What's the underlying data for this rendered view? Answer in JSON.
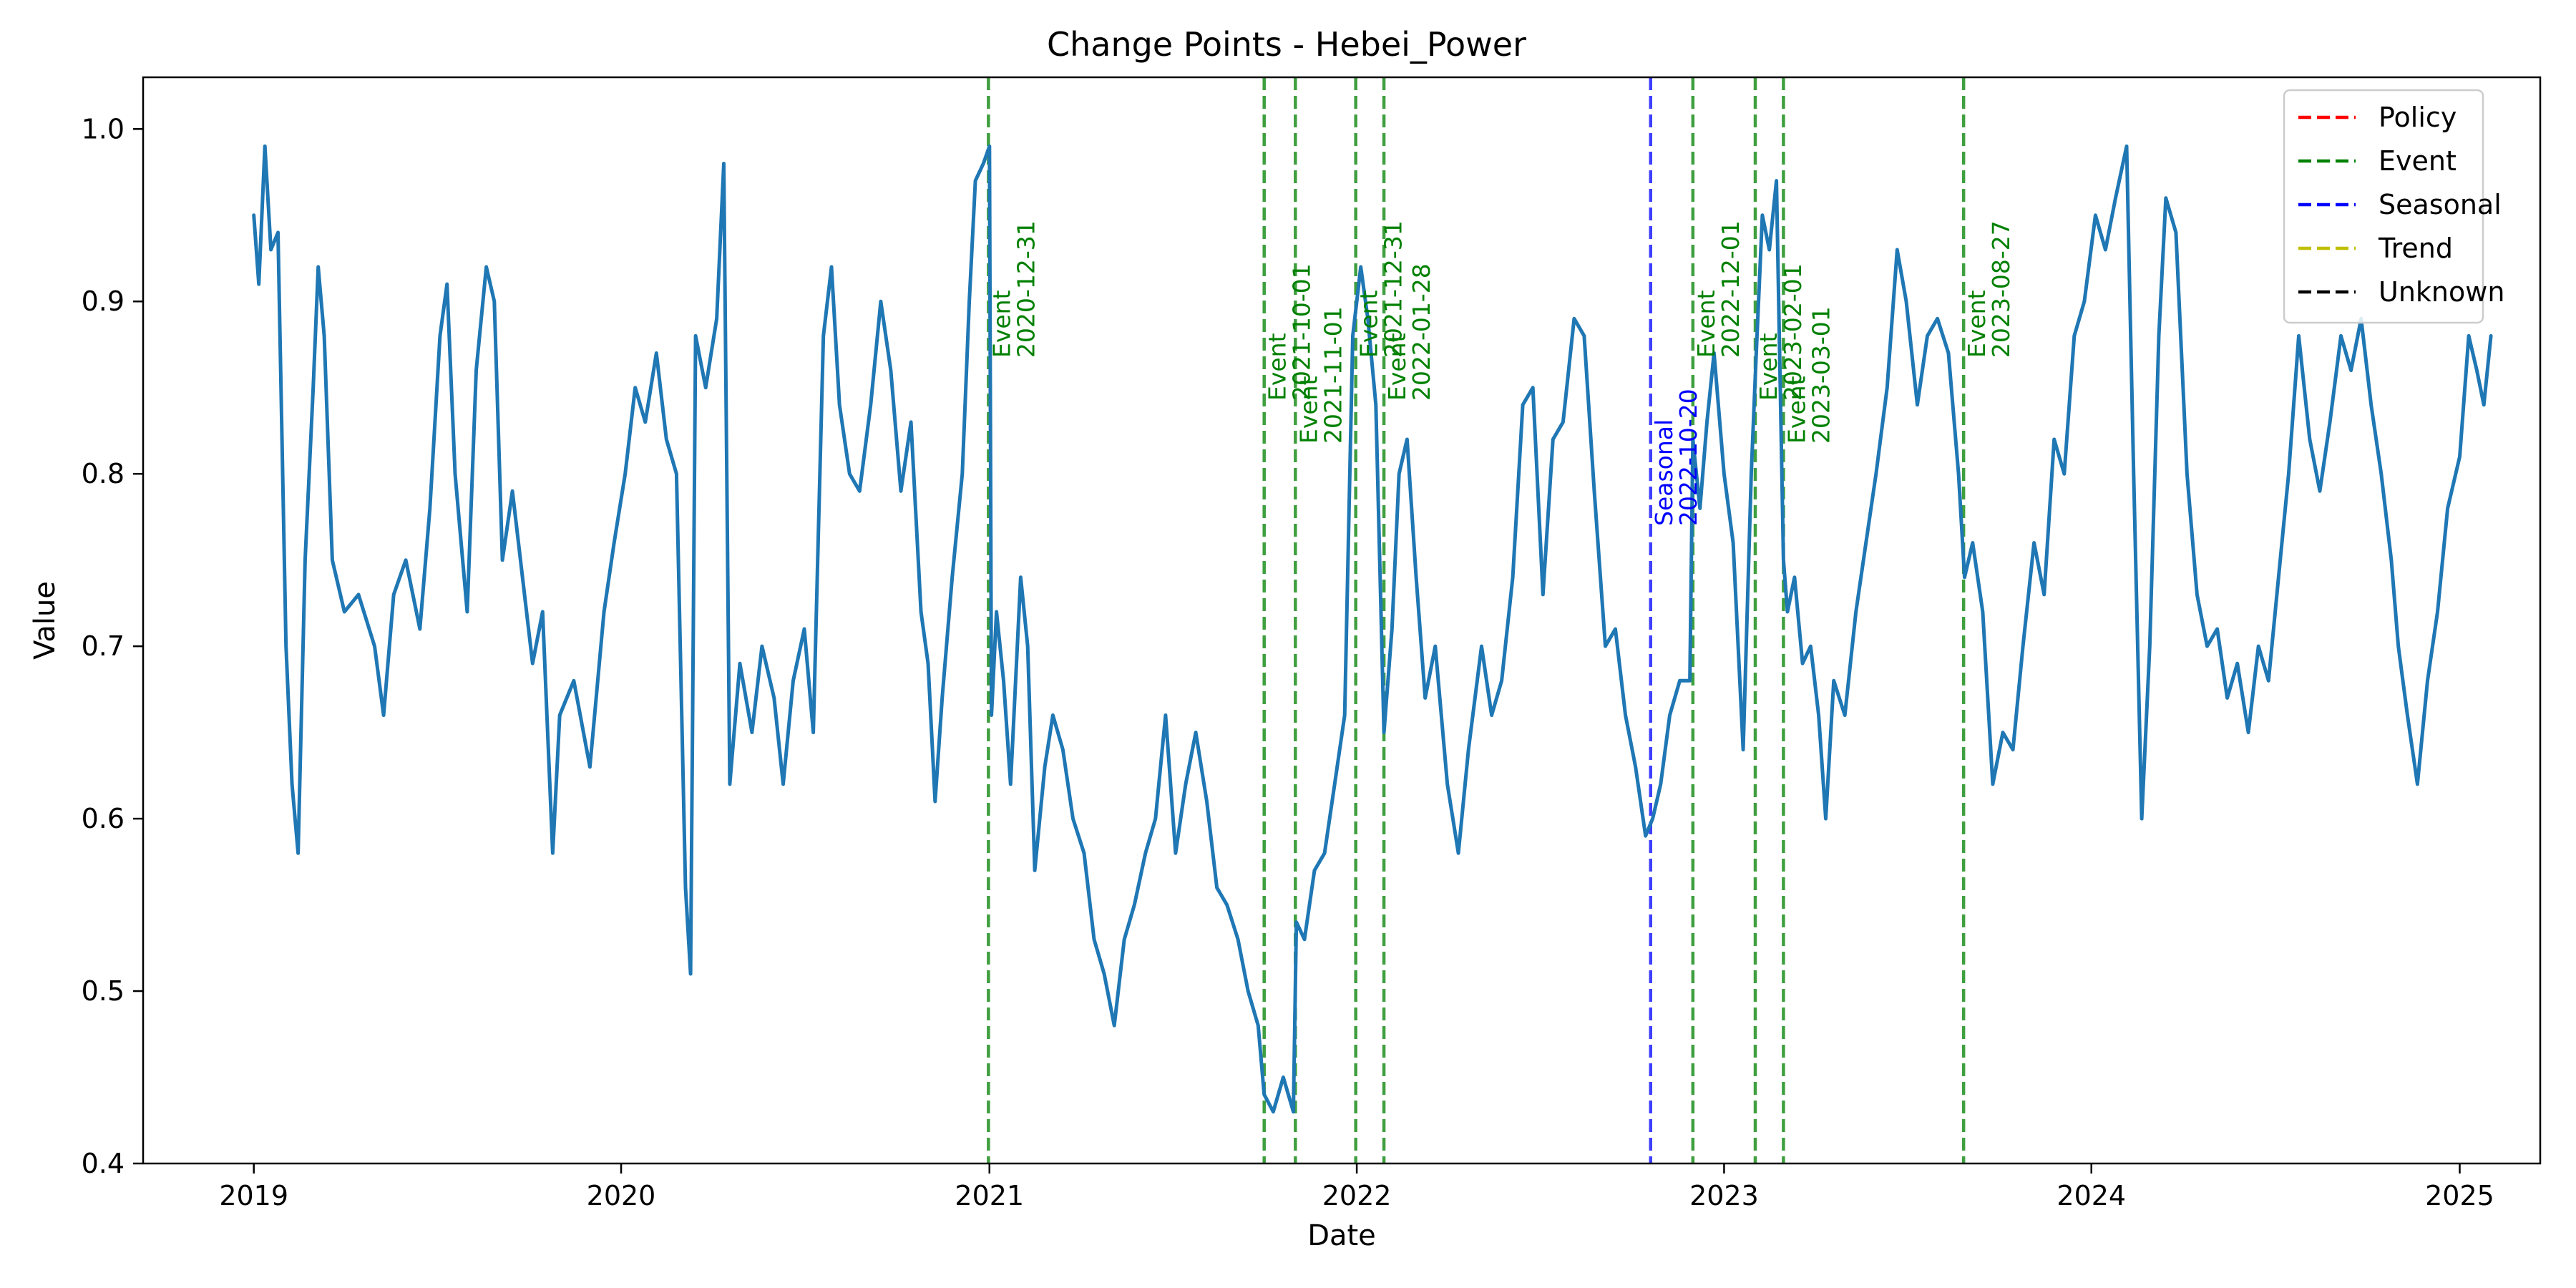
{
  "chart_data": {
    "type": "line",
    "title": "Change Points - Hebei_Power",
    "xlabel": "Date",
    "ylabel": "Value",
    "xlim": [
      "2018-09-13",
      "2025-03-22"
    ],
    "ylim": [
      0.4,
      1.03
    ],
    "xticks": [
      "2019",
      "2020",
      "2021",
      "2022",
      "2023",
      "2024",
      "2025"
    ],
    "yticks": [
      "0.4",
      "0.5",
      "0.6",
      "0.7",
      "0.8",
      "0.9",
      "1.0"
    ],
    "grid": false,
    "legend_position": "top-right",
    "legend": [
      {
        "label": "Policy",
        "color": "#ff0000"
      },
      {
        "label": "Event",
        "color": "#008000"
      },
      {
        "label": "Seasonal",
        "color": "#0000ff"
      },
      {
        "label": "Trend",
        "color": "#bfbf00"
      },
      {
        "label": "Unknown",
        "color": "#000000"
      }
    ],
    "series": [
      {
        "color": "#1f77b4",
        "points": [
          [
            "2019-01-01",
            0.95
          ],
          [
            "2019-01-06",
            0.91
          ],
          [
            "2019-01-12",
            0.99
          ],
          [
            "2019-01-18",
            0.93
          ],
          [
            "2019-01-25",
            0.94
          ],
          [
            "2019-02-02",
            0.7
          ],
          [
            "2019-02-08",
            0.62
          ],
          [
            "2019-02-14",
            0.58
          ],
          [
            "2019-02-21",
            0.75
          ],
          [
            "2019-03-01",
            0.85
          ],
          [
            "2019-03-06",
            0.92
          ],
          [
            "2019-03-12",
            0.88
          ],
          [
            "2019-03-20",
            0.75
          ],
          [
            "2019-04-01",
            0.72
          ],
          [
            "2019-04-15",
            0.73
          ],
          [
            "2019-05-01",
            0.7
          ],
          [
            "2019-05-10",
            0.66
          ],
          [
            "2019-05-20",
            0.73
          ],
          [
            "2019-06-01",
            0.75
          ],
          [
            "2019-06-15",
            0.71
          ],
          [
            "2019-06-25",
            0.78
          ],
          [
            "2019-07-05",
            0.88
          ],
          [
            "2019-07-12",
            0.91
          ],
          [
            "2019-07-20",
            0.8
          ],
          [
            "2019-08-01",
            0.72
          ],
          [
            "2019-08-10",
            0.86
          ],
          [
            "2019-08-20",
            0.92
          ],
          [
            "2019-08-28",
            0.9
          ],
          [
            "2019-09-05",
            0.75
          ],
          [
            "2019-09-15",
            0.79
          ],
          [
            "2019-09-25",
            0.74
          ],
          [
            "2019-10-05",
            0.69
          ],
          [
            "2019-10-15",
            0.72
          ],
          [
            "2019-10-25",
            0.58
          ],
          [
            "2019-11-01",
            0.66
          ],
          [
            "2019-11-15",
            0.68
          ],
          [
            "2019-12-01",
            0.63
          ],
          [
            "2019-12-15",
            0.72
          ],
          [
            "2019-12-25",
            0.76
          ],
          [
            "2020-01-05",
            0.8
          ],
          [
            "2020-01-15",
            0.85
          ],
          [
            "2020-01-25",
            0.83
          ],
          [
            "2020-02-05",
            0.87
          ],
          [
            "2020-02-15",
            0.82
          ],
          [
            "2020-02-25",
            0.8
          ],
          [
            "2020-03-05",
            0.56
          ],
          [
            "2020-03-10",
            0.51
          ],
          [
            "2020-03-15",
            0.88
          ],
          [
            "2020-03-25",
            0.85
          ],
          [
            "2020-04-05",
            0.89
          ],
          [
            "2020-04-12",
            0.98
          ],
          [
            "2020-04-18",
            0.62
          ],
          [
            "2020-04-28",
            0.69
          ],
          [
            "2020-05-10",
            0.65
          ],
          [
            "2020-05-20",
            0.7
          ],
          [
            "2020-06-01",
            0.67
          ],
          [
            "2020-06-10",
            0.62
          ],
          [
            "2020-06-20",
            0.68
          ],
          [
            "2020-07-01",
            0.71
          ],
          [
            "2020-07-10",
            0.65
          ],
          [
            "2020-07-20",
            0.88
          ],
          [
            "2020-07-28",
            0.92
          ],
          [
            "2020-08-05",
            0.84
          ],
          [
            "2020-08-15",
            0.8
          ],
          [
            "2020-08-25",
            0.79
          ],
          [
            "2020-09-05",
            0.84
          ],
          [
            "2020-09-15",
            0.9
          ],
          [
            "2020-09-25",
            0.86
          ],
          [
            "2020-10-05",
            0.79
          ],
          [
            "2020-10-15",
            0.83
          ],
          [
            "2020-10-25",
            0.72
          ],
          [
            "2020-11-01",
            0.69
          ],
          [
            "2020-11-08",
            0.61
          ],
          [
            "2020-11-15",
            0.67
          ],
          [
            "2020-11-25",
            0.74
          ],
          [
            "2020-12-05",
            0.8
          ],
          [
            "2020-12-12",
            0.9
          ],
          [
            "2020-12-18",
            0.97
          ],
          [
            "2020-12-26",
            0.98
          ],
          [
            "2021-01-01",
            0.99
          ],
          [
            "2021-01-03",
            0.66
          ],
          [
            "2021-01-08",
            0.72
          ],
          [
            "2021-01-15",
            0.68
          ],
          [
            "2021-01-22",
            0.62
          ],
          [
            "2021-02-01",
            0.74
          ],
          [
            "2021-02-08",
            0.7
          ],
          [
            "2021-02-15",
            0.57
          ],
          [
            "2021-02-25",
            0.63
          ],
          [
            "2021-03-05",
            0.66
          ],
          [
            "2021-03-15",
            0.64
          ],
          [
            "2021-03-25",
            0.6
          ],
          [
            "2021-04-05",
            0.58
          ],
          [
            "2021-04-15",
            0.53
          ],
          [
            "2021-04-25",
            0.51
          ],
          [
            "2021-05-05",
            0.48
          ],
          [
            "2021-05-15",
            0.53
          ],
          [
            "2021-05-25",
            0.55
          ],
          [
            "2021-06-05",
            0.58
          ],
          [
            "2021-06-15",
            0.6
          ],
          [
            "2021-06-25",
            0.66
          ],
          [
            "2021-07-05",
            0.58
          ],
          [
            "2021-07-15",
            0.62
          ],
          [
            "2021-07-25",
            0.65
          ],
          [
            "2021-08-05",
            0.61
          ],
          [
            "2021-08-15",
            0.56
          ],
          [
            "2021-08-25",
            0.55
          ],
          [
            "2021-09-05",
            0.53
          ],
          [
            "2021-09-15",
            0.5
          ],
          [
            "2021-09-25",
            0.48
          ],
          [
            "2021-10-01",
            0.44
          ],
          [
            "2021-10-10",
            0.43
          ],
          [
            "2021-10-20",
            0.45
          ],
          [
            "2021-10-30",
            0.43
          ],
          [
            "2021-11-02",
            0.54
          ],
          [
            "2021-11-10",
            0.53
          ],
          [
            "2021-11-20",
            0.57
          ],
          [
            "2021-11-30",
            0.58
          ],
          [
            "2021-12-10",
            0.62
          ],
          [
            "2021-12-20",
            0.66
          ],
          [
            "2021-12-28",
            0.88
          ],
          [
            "2022-01-05",
            0.92
          ],
          [
            "2022-01-12",
            0.89
          ],
          [
            "2022-01-20",
            0.84
          ],
          [
            "2022-01-28",
            0.65
          ],
          [
            "2022-02-05",
            0.71
          ],
          [
            "2022-02-12",
            0.8
          ],
          [
            "2022-02-20",
            0.82
          ],
          [
            "2022-03-01",
            0.74
          ],
          [
            "2022-03-10",
            0.67
          ],
          [
            "2022-03-20",
            0.7
          ],
          [
            "2022-04-01",
            0.62
          ],
          [
            "2022-04-12",
            0.58
          ],
          [
            "2022-04-22",
            0.64
          ],
          [
            "2022-05-05",
            0.7
          ],
          [
            "2022-05-15",
            0.66
          ],
          [
            "2022-05-25",
            0.68
          ],
          [
            "2022-06-05",
            0.74
          ],
          [
            "2022-06-15",
            0.84
          ],
          [
            "2022-06-25",
            0.85
          ],
          [
            "2022-07-05",
            0.73
          ],
          [
            "2022-07-15",
            0.82
          ],
          [
            "2022-07-25",
            0.83
          ],
          [
            "2022-08-05",
            0.89
          ],
          [
            "2022-08-15",
            0.88
          ],
          [
            "2022-08-25",
            0.79
          ],
          [
            "2022-09-05",
            0.7
          ],
          [
            "2022-09-15",
            0.71
          ],
          [
            "2022-09-25",
            0.66
          ],
          [
            "2022-10-05",
            0.63
          ],
          [
            "2022-10-15",
            0.59
          ],
          [
            "2022-10-22",
            0.6
          ],
          [
            "2022-10-30",
            0.62
          ],
          [
            "2022-11-08",
            0.66
          ],
          [
            "2022-11-18",
            0.68
          ],
          [
            "2022-11-28",
            0.68
          ],
          [
            "2022-12-01",
            0.82
          ],
          [
            "2022-12-08",
            0.78
          ],
          [
            "2022-12-15",
            0.83
          ],
          [
            "2022-12-22",
            0.87
          ],
          [
            "2023-01-01",
            0.8
          ],
          [
            "2023-01-10",
            0.76
          ],
          [
            "2023-01-20",
            0.64
          ],
          [
            "2023-01-28",
            0.8
          ],
          [
            "2023-02-02",
            0.87
          ],
          [
            "2023-02-08",
            0.95
          ],
          [
            "2023-02-15",
            0.93
          ],
          [
            "2023-02-22",
            0.97
          ],
          [
            "2023-03-01",
            0.75
          ],
          [
            "2023-03-05",
            0.72
          ],
          [
            "2023-03-12",
            0.74
          ],
          [
            "2023-03-20",
            0.69
          ],
          [
            "2023-03-28",
            0.7
          ],
          [
            "2023-04-05",
            0.66
          ],
          [
            "2023-04-12",
            0.6
          ],
          [
            "2023-04-20",
            0.68
          ],
          [
            "2023-05-01",
            0.66
          ],
          [
            "2023-05-12",
            0.72
          ],
          [
            "2023-05-22",
            0.76
          ],
          [
            "2023-06-01",
            0.8
          ],
          [
            "2023-06-12",
            0.85
          ],
          [
            "2023-06-22",
            0.93
          ],
          [
            "2023-07-01",
            0.9
          ],
          [
            "2023-07-12",
            0.84
          ],
          [
            "2023-07-22",
            0.88
          ],
          [
            "2023-08-01",
            0.89
          ],
          [
            "2023-08-12",
            0.87
          ],
          [
            "2023-08-22",
            0.8
          ],
          [
            "2023-08-28",
            0.74
          ],
          [
            "2023-09-05",
            0.76
          ],
          [
            "2023-09-15",
            0.72
          ],
          [
            "2023-09-25",
            0.62
          ],
          [
            "2023-10-05",
            0.65
          ],
          [
            "2023-10-15",
            0.64
          ],
          [
            "2023-10-25",
            0.7
          ],
          [
            "2023-11-05",
            0.76
          ],
          [
            "2023-11-15",
            0.73
          ],
          [
            "2023-11-25",
            0.82
          ],
          [
            "2023-12-05",
            0.8
          ],
          [
            "2023-12-15",
            0.88
          ],
          [
            "2023-12-25",
            0.9
          ],
          [
            "2024-01-05",
            0.95
          ],
          [
            "2024-01-15",
            0.93
          ],
          [
            "2024-01-25",
            0.96
          ],
          [
            "2024-02-05",
            0.99
          ],
          [
            "2024-02-12",
            0.8
          ],
          [
            "2024-02-20",
            0.6
          ],
          [
            "2024-02-28",
            0.7
          ],
          [
            "2024-03-08",
            0.88
          ],
          [
            "2024-03-15",
            0.96
          ],
          [
            "2024-03-25",
            0.94
          ],
          [
            "2024-04-05",
            0.8
          ],
          [
            "2024-04-15",
            0.73
          ],
          [
            "2024-04-25",
            0.7
          ],
          [
            "2024-05-05",
            0.71
          ],
          [
            "2024-05-15",
            0.67
          ],
          [
            "2024-05-25",
            0.69
          ],
          [
            "2024-06-05",
            0.65
          ],
          [
            "2024-06-15",
            0.7
          ],
          [
            "2024-06-25",
            0.68
          ],
          [
            "2024-07-05",
            0.74
          ],
          [
            "2024-07-15",
            0.8
          ],
          [
            "2024-07-25",
            0.88
          ],
          [
            "2024-08-05",
            0.82
          ],
          [
            "2024-08-15",
            0.79
          ],
          [
            "2024-08-25",
            0.83
          ],
          [
            "2024-09-05",
            0.88
          ],
          [
            "2024-09-15",
            0.86
          ],
          [
            "2024-09-25",
            0.89
          ],
          [
            "2024-10-05",
            0.84
          ],
          [
            "2024-10-15",
            0.8
          ],
          [
            "2024-10-25",
            0.75
          ],
          [
            "2024-11-01",
            0.7
          ],
          [
            "2024-11-10",
            0.66
          ],
          [
            "2024-11-20",
            0.62
          ],
          [
            "2024-11-30",
            0.68
          ],
          [
            "2024-12-10",
            0.72
          ],
          [
            "2024-12-20",
            0.78
          ],
          [
            "2025-01-01",
            0.81
          ],
          [
            "2025-01-10",
            0.88
          ],
          [
            "2025-01-18",
            0.86
          ],
          [
            "2025-01-25",
            0.84
          ],
          [
            "2025-02-01",
            0.88
          ]
        ]
      }
    ],
    "change_points": [
      {
        "type": "Event",
        "date": "2020-12-31",
        "color": "#008000"
      },
      {
        "type": "Event",
        "date": "2021-10-01",
        "color": "#008000"
      },
      {
        "type": "Event",
        "date": "2021-11-01",
        "color": "#008000"
      },
      {
        "type": "Event",
        "date": "2021-12-31",
        "color": "#008000"
      },
      {
        "type": "Event",
        "date": "2022-01-28",
        "color": "#008000"
      },
      {
        "type": "Seasonal",
        "date": "2022-10-20",
        "color": "#0000ff"
      },
      {
        "type": "Event",
        "date": "2022-12-01",
        "color": "#008000"
      },
      {
        "type": "Event",
        "date": "2023-02-01",
        "color": "#008000"
      },
      {
        "type": "Event",
        "date": "2023-03-01",
        "color": "#008000"
      },
      {
        "type": "Event",
        "date": "2023-08-27",
        "color": "#008000"
      }
    ]
  }
}
